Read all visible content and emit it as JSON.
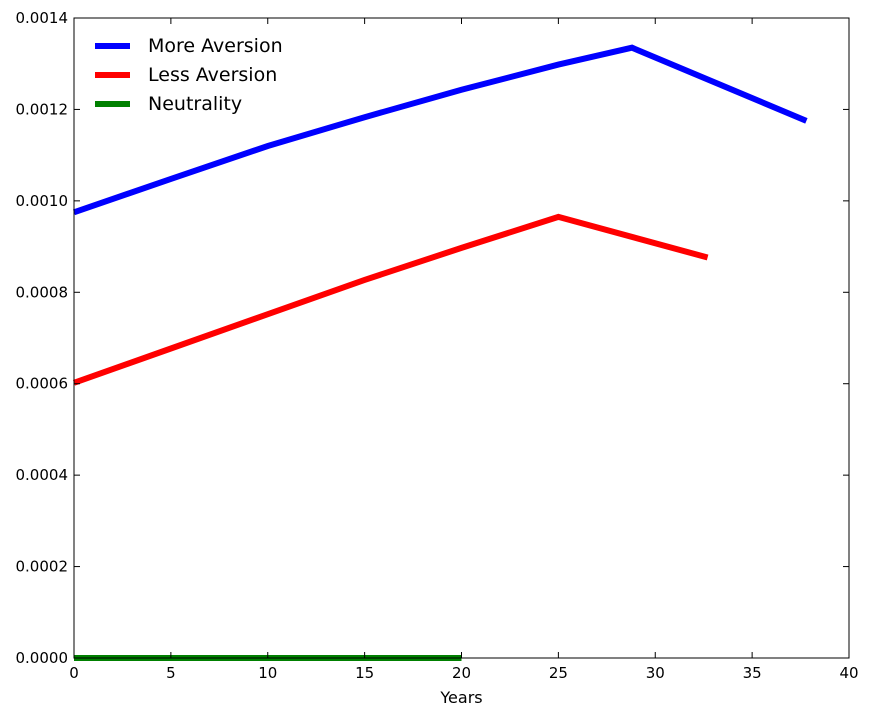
{
  "chart_data": {
    "type": "line",
    "title": "",
    "xlabel": "Years",
    "ylabel": "",
    "xlim": [
      0,
      40
    ],
    "ylim": [
      0,
      0.0014
    ],
    "xticks": [
      0,
      5,
      10,
      15,
      20,
      25,
      30,
      35,
      40
    ],
    "yticks": [
      0.0,
      0.0002,
      0.0004,
      0.0006,
      0.0008,
      0.001,
      0.0012,
      0.0014
    ],
    "xtick_labels": [
      "0",
      "5",
      "10",
      "15",
      "20",
      "25",
      "30",
      "35",
      "40"
    ],
    "ytick_labels": [
      "0.0000",
      "0.0002",
      "0.0004",
      "0.0006",
      "0.0008",
      "0.0010",
      "0.0012",
      "0.0014"
    ],
    "grid": false,
    "legend_position": "top-left",
    "series": [
      {
        "name": "More Aversion",
        "color": "#0000ff",
        "x": [
          0,
          5,
          10,
          15,
          20,
          25,
          28.8,
          37.8
        ],
        "y": [
          0.000975,
          0.001048,
          0.00112,
          0.001183,
          0.001243,
          0.001298,
          0.001335,
          0.001175
        ]
      },
      {
        "name": "Less Aversion",
        "color": "#ff0000",
        "x": [
          0,
          5,
          10,
          15,
          20,
          25,
          32.7
        ],
        "y": [
          0.000602,
          0.000677,
          0.000752,
          0.000827,
          0.000897,
          0.000965,
          0.000876
        ]
      },
      {
        "name": "Neutrality",
        "color": "#008000",
        "x": [
          0,
          20
        ],
        "y": [
          0,
          0
        ]
      }
    ]
  }
}
